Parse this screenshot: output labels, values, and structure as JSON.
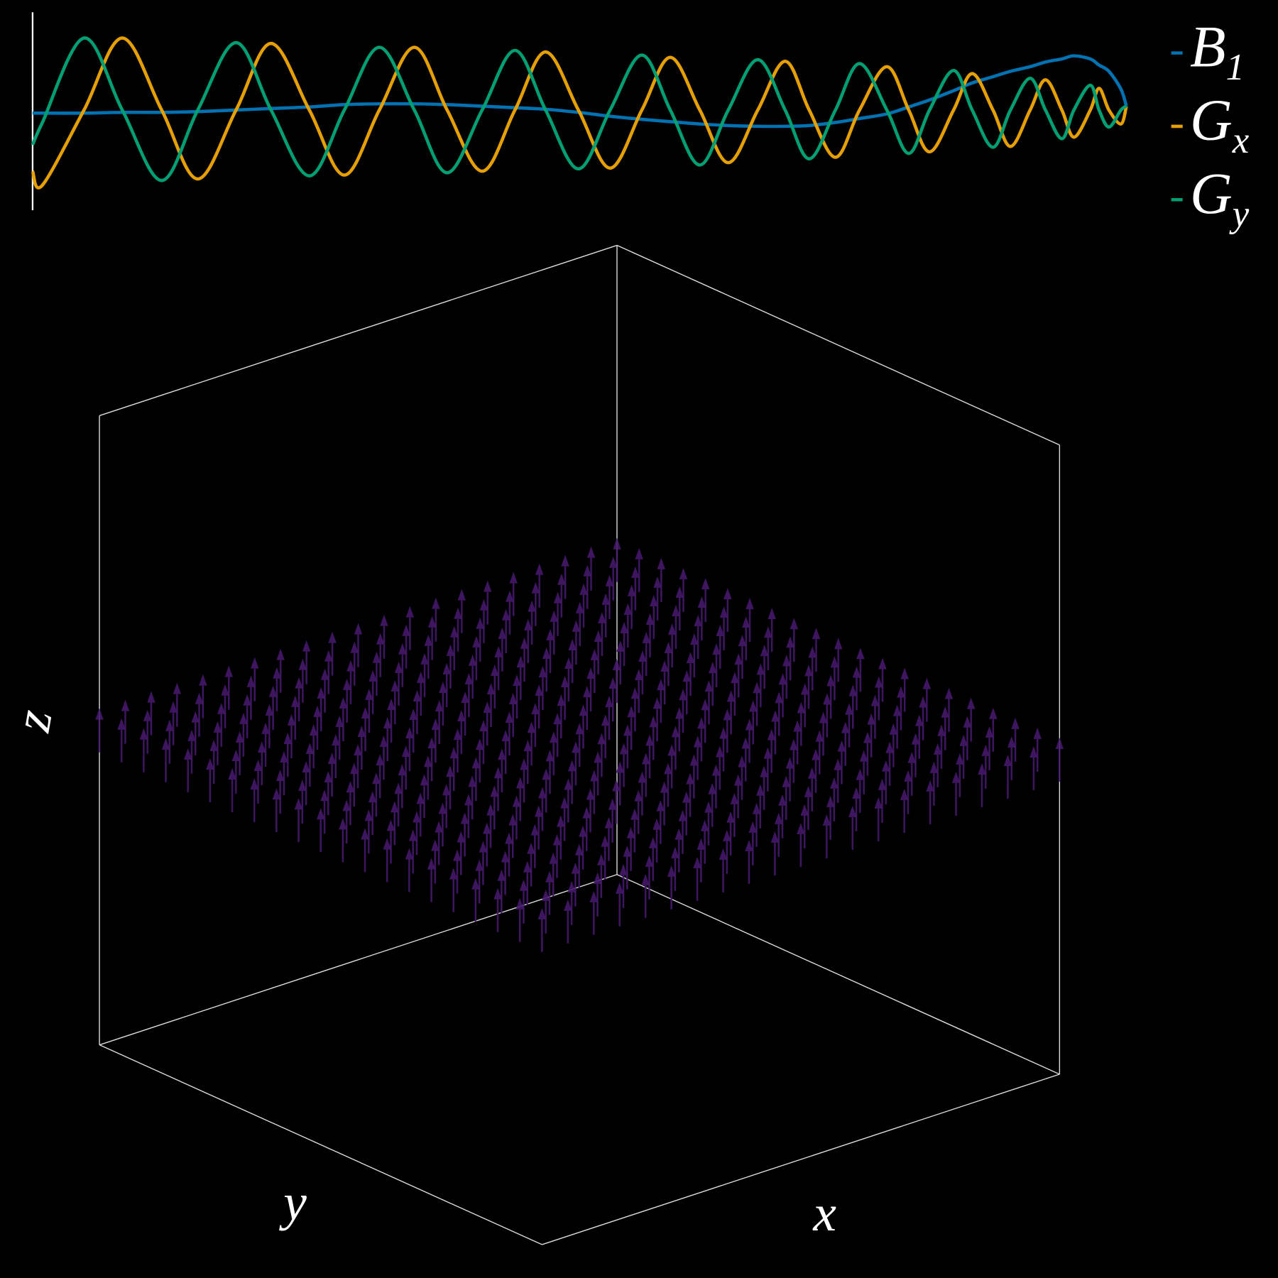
{
  "chart_data": [
    {
      "type": "line",
      "x": [
        0,
        0.9,
        4.7,
        8.2,
        11.8,
        15.1,
        18.6,
        21.8,
        25.3,
        28.5,
        31.7,
        34.9,
        37.9,
        41.1,
        44.1,
        46.9,
        49.9,
        52.8,
        55.7,
        58.3,
        61.0,
        63.6,
        66.3,
        68.8,
        71.0,
        73.4,
        75.6,
        78.1,
        80.1,
        82.0,
        84.2,
        85.9,
        87.8,
        89.4,
        91.2,
        92.6,
        94.1,
        95.2,
        96.7,
        97.5,
        98.4,
        99.5,
        100
      ],
      "xlim": [
        0,
        100
      ],
      "ylim": [
        -1,
        1
      ],
      "legend": "right",
      "series": [
        {
          "name": "B1",
          "color": "#0072b2",
          "values": [
            -0.04,
            -0.04,
            -0.04,
            -0.03,
            -0.03,
            -0.02,
            0.0,
            0.02,
            0.04,
            0.07,
            0.08,
            0.08,
            0.07,
            0.05,
            0.03,
            0.01,
            -0.03,
            -0.08,
            -0.12,
            -0.15,
            -0.18,
            -0.2,
            -0.21,
            -0.21,
            -0.2,
            -0.16,
            -0.11,
            -0.05,
            0.04,
            0.13,
            0.25,
            0.35,
            0.43,
            0.5,
            0.56,
            0.62,
            0.66,
            0.7,
            0.66,
            0.58,
            0.5,
            0.27,
            0.05
          ]
        },
        {
          "name": "Gx",
          "color": "#e69f00",
          "values": [
            -0.79,
            -0.97,
            0,
            0.93,
            0,
            -0.89,
            0,
            0.86,
            0,
            -0.84,
            0,
            0.81,
            0,
            -0.79,
            0,
            0.75,
            0,
            -0.75,
            0,
            0.68,
            0,
            -0.68,
            0,
            0.63,
            0,
            -0.61,
            0,
            0.56,
            0,
            -0.54,
            0,
            0.47,
            0,
            -0.47,
            0,
            0.39,
            0,
            -0.35,
            0,
            0.28,
            0,
            -0.18,
            0.05
          ]
        },
        {
          "name": "Gy",
          "color": "#009e73",
          "values": [
            -0.45,
            -0.16,
            0.93,
            0,
            -0.91,
            0,
            0.87,
            0,
            -0.85,
            0,
            0.81,
            0,
            -0.81,
            0,
            0.77,
            0,
            -0.76,
            0,
            0.71,
            0,
            -0.71,
            0,
            0.65,
            0,
            -0.63,
            0,
            0.6,
            0,
            -0.56,
            0,
            0.51,
            0,
            -0.48,
            0,
            0.41,
            0,
            -0.37,
            0,
            0.32,
            0,
            -0.22,
            0,
            0.05
          ]
        }
      ]
    },
    {
      "type": "quiver3d",
      "x": [
        -1,
        -0.9,
        -0.8,
        -0.7,
        -0.6,
        -0.5,
        -0.4,
        -0.3,
        -0.2,
        -0.1,
        0,
        0.1,
        0.2,
        0.3,
        0.4,
        0.5,
        0.6,
        0.7,
        0.8,
        0.9,
        1
      ],
      "y": [
        -1,
        -0.9,
        -0.8,
        -0.7,
        -0.6,
        -0.5,
        -0.4,
        -0.3,
        -0.2,
        -0.1,
        0,
        0.1,
        0.2,
        0.3,
        0.4,
        0.5,
        0.6,
        0.7,
        0.8,
        0.9,
        1
      ],
      "z": 0,
      "w": 0.14,
      "xlim": [
        -1,
        1
      ],
      "ylim": [
        -1,
        1
      ],
      "zlim": [
        -1,
        1
      ],
      "xlabel": "x",
      "ylabel": "y",
      "zlabel": "z",
      "color": "#45196a"
    }
  ]
}
